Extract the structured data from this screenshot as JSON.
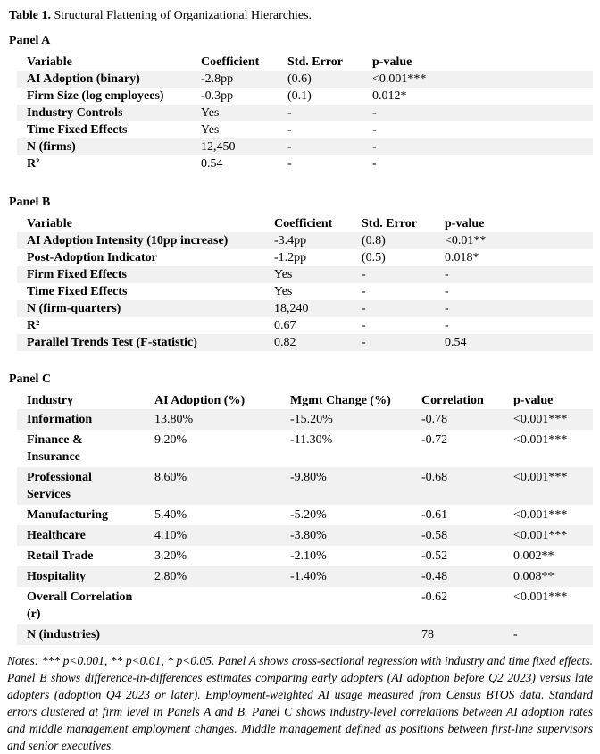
{
  "document": {
    "title_label": "Table 1.",
    "title_text": "Structural Flattening of Organizational Hierarchies.",
    "colors": {
      "background": "#ffffff",
      "row_stripe": "#f1f1f1",
      "text": "#000000"
    }
  },
  "panel_a": {
    "label": "Panel A",
    "headers": [
      "Variable",
      "Coefficient",
      "Std. Error",
      "p-value"
    ],
    "rows": [
      [
        "AI Adoption (binary)",
        "-2.8pp",
        "(0.6)",
        "<0.001***"
      ],
      [
        "Firm Size (log employees)",
        "-0.3pp",
        "(0.1)",
        "0.012*"
      ],
      [
        "Industry Controls",
        "Yes",
        "-",
        "-"
      ],
      [
        "Time Fixed Effects",
        "Yes",
        "-",
        "-"
      ],
      [
        "N (firms)",
        "12,450",
        "-",
        "-"
      ],
      [
        "R²",
        "0.54",
        "-",
        "-"
      ]
    ]
  },
  "panel_b": {
    "label": "Panel B",
    "headers": [
      "Variable",
      "Coefficient",
      "Std. Error",
      "p-value"
    ],
    "rows": [
      [
        "AI Adoption Intensity (10pp increase)",
        "-3.4pp",
        "(0.8)",
        "<0.01**"
      ],
      [
        "Post-Adoption Indicator",
        "-1.2pp",
        "(0.5)",
        "0.018*"
      ],
      [
        "Firm Fixed Effects",
        "Yes",
        "-",
        "-"
      ],
      [
        "Time Fixed Effects",
        "Yes",
        "-",
        "-"
      ],
      [
        "N (firm-quarters)",
        "18,240",
        "-",
        "-"
      ],
      [
        "R²",
        "0.67",
        "-",
        "-"
      ],
      [
        "Parallel Trends Test (F-statistic)",
        "0.82",
        "-",
        "0.54"
      ]
    ]
  },
  "panel_c": {
    "label": "Panel C",
    "headers": [
      "Industry",
      "AI Adoption (%)",
      "Mgmt Change (%)",
      "Correlation",
      "p-value"
    ],
    "rows": [
      [
        "Information",
        "13.80%",
        "-15.20%",
        "-0.78",
        "<0.001***"
      ],
      [
        "Finance &\nInsurance",
        "9.20%",
        "-11.30%",
        "-0.72",
        "<0.001***"
      ],
      [
        "Professional\nServices",
        "8.60%",
        "-9.80%",
        "-0.68",
        "<0.001***"
      ],
      [
        "Manufacturing",
        "5.40%",
        "-5.20%",
        "-0.61",
        "<0.001***"
      ],
      [
        "Healthcare",
        "4.10%",
        "-3.80%",
        "-0.58",
        "<0.001***"
      ],
      [
        "Retail Trade",
        "3.20%",
        "-2.10%",
        "-0.52",
        "0.002**"
      ],
      [
        "Hospitality",
        "2.80%",
        "-1.40%",
        "-0.48",
        "0.008**"
      ],
      [
        "Overall Correlation\n(r)",
        "",
        "",
        "-0.62",
        "<0.001***"
      ],
      [
        "N (industries)",
        "",
        "",
        "78",
        "-"
      ]
    ]
  },
  "notes": {
    "label": "Notes:",
    "text": "*** p<0.001, ** p<0.01, * p<0.05. Panel A shows cross-sectional regression with industry and time fixed effects. Panel B shows difference-in-differences estimates comparing early adopters (AI adoption before Q2 2023) versus late adopters (adoption Q4 2023 or later). Employment-weighted AI usage measured from Census BTOS data. Standard errors clustered at firm level in Panels A and B. Panel C shows industry-level correlations between AI adoption rates and middle management employment changes. Middle management defined as positions between first-line supervisors and senior executives."
  }
}
